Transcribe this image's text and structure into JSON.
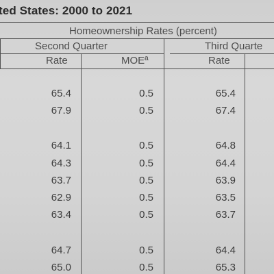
{
  "title": "ted States: 2000 to 2021",
  "header": {
    "group": "Homeownership Rates (percent)",
    "second_quarter": "Second Quarter",
    "third_quarter": "Third Quarte",
    "rate": "Rate",
    "moe": "MOEª",
    "rate3": "Rate"
  },
  "rows": [
    {
      "rate2": "65.4",
      "moe2": "0.5",
      "rate3": "65.4"
    },
    {
      "rate2": "67.9",
      "moe2": "0.5",
      "rate3": "67.4"
    },
    {
      "rate2": "64.1",
      "moe2": "0.5",
      "rate3": "64.8"
    },
    {
      "rate2": "64.3",
      "moe2": "0.5",
      "rate3": "64.4"
    },
    {
      "rate2": "63.7",
      "moe2": "0.5",
      "rate3": "63.9"
    },
    {
      "rate2": "62.9",
      "moe2": "0.5",
      "rate3": "63.5"
    },
    {
      "rate2": "63.4",
      "moe2": "0.5",
      "rate3": "63.7"
    },
    {
      "rate2": "64.7",
      "moe2": "0.5",
      "rate3": "64.4"
    },
    {
      "rate2": "65.0",
      "moe2": "0.5",
      "rate3": "65.3"
    }
  ]
}
